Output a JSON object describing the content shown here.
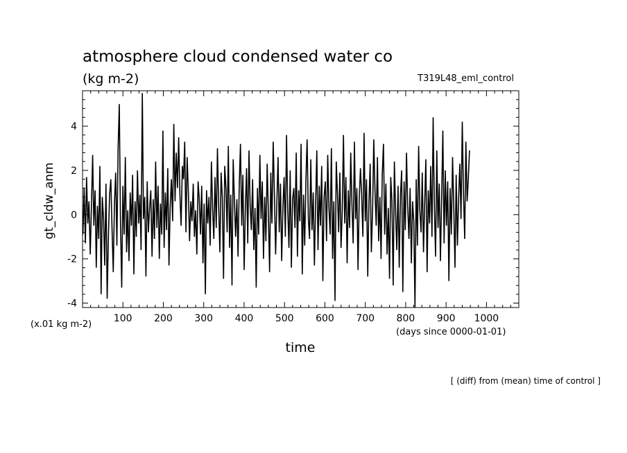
{
  "chart_data": {
    "type": "line",
    "title": "atmosphere cloud condensed water co",
    "units": "(kg m-2)",
    "run_name": "T319L48_eml_control",
    "xlabel": "time",
    "xunits": "(days since 0000-01-01)",
    "ylabel": "gt_cldw_anm",
    "yscale_note": "(x.01 kg m-2)",
    "footnote": "[ (diff) from (mean) time of control ]",
    "xlim": [
      0,
      1080
    ],
    "ylim": [
      -4.2,
      5.6
    ],
    "x_ticks": [
      100,
      200,
      300,
      400,
      500,
      600,
      700,
      800,
      900,
      1000
    ],
    "y_ticks": [
      -4,
      -2,
      0,
      2,
      4
    ],
    "x_start": 1,
    "x_step": 3,
    "series": [
      {
        "values": [
          -0.9,
          1.2,
          -1.3,
          1.7,
          -0.4,
          0.6,
          -1.8,
          0.3,
          2.7,
          -0.5,
          1.1,
          -2.4,
          0.4,
          -1.1,
          2.2,
          -3.6,
          0.8,
          -0.2,
          -2.3,
          1.4,
          -3.8,
          -1.0,
          0.9,
          1.6,
          -0.6,
          -2.6,
          0.5,
          1.9,
          -1.4,
          3.0,
          5.0,
          -0.3,
          -3.3,
          1.3,
          -0.9,
          2.6,
          -1.7,
          0.2,
          -2.1,
          1.0,
          -0.5,
          1.8,
          -2.7,
          0.6,
          -1.0,
          2.0,
          -0.4,
          0.9,
          -1.6,
          5.5,
          -0.2,
          0.8,
          -2.8,
          1.5,
          -0.8,
          0.3,
          1.1,
          -1.9,
          0.7,
          -1.1,
          2.4,
          -0.6,
          1.3,
          -2.0,
          0.5,
          -0.9,
          3.8,
          -1.5,
          1.0,
          -0.7,
          2.1,
          -2.3,
          0.4,
          1.6,
          -0.3,
          4.1,
          0.6,
          2.8,
          1.2,
          3.5,
          0.9,
          -0.5,
          2.2,
          1.6,
          3.3,
          -0.8,
          2.6,
          1.0,
          -1.2,
          0.6,
          -0.3,
          1.4,
          -1.0,
          0.2,
          -1.8,
          1.5,
          0.7,
          -0.9,
          1.3,
          -2.2,
          0.5,
          -3.6,
          1.1,
          -0.4,
          0.8,
          -1.4,
          2.4,
          0.3,
          -1.1,
          1.7,
          -0.6,
          3.0,
          0.4,
          -1.7,
          1.9,
          0.8,
          -2.9,
          2.2,
          1.2,
          -0.8,
          3.1,
          -1.5,
          0.9,
          -3.2,
          2.5,
          0.6,
          -1.0,
          0.7,
          -1.9,
          1.4,
          3.2,
          -0.5,
          1.8,
          -2.5,
          0.2,
          2.1,
          -1.3,
          2.9,
          0.4,
          -0.7,
          1.6,
          -1.6,
          0.3,
          -3.3,
          1.2,
          -0.9,
          2.7,
          -0.2,
          1.5,
          -2.0,
          0.8,
          -1.2,
          2.3,
          0.1,
          -2.6,
          1.9,
          -0.4,
          3.3,
          1.0,
          -1.8,
          0.5,
          2.6,
          -0.8,
          1.4,
          -2.1,
          0.3,
          1.7,
          -1.0,
          3.6,
          0.2,
          -1.5,
          2.0,
          -2.4,
          0.7,
          1.2,
          -0.6,
          2.8,
          -1.9,
          1.1,
          -0.3,
          3.2,
          -2.7,
          0.9,
          -1.4,
          1.6,
          3.4,
          -0.2,
          -1.1,
          2.5,
          -0.7,
          1.0,
          -2.3,
          0.4,
          2.9,
          -1.6,
          1.3,
          -0.5,
          2.2,
          -3.0,
          0.8,
          1.5,
          -1.2,
          2.7,
          0.3,
          -0.9,
          3.0,
          -2.0,
          0.6,
          -3.9,
          2.4,
          1.0,
          -0.8,
          1.9,
          -1.5,
          0.2,
          3.6,
          -0.4,
          1.7,
          -2.2,
          1.1,
          -0.6,
          2.8,
          0.4,
          -1.3,
          3.3,
          -0.2,
          1.2,
          -2.5,
          0.7,
          2.1,
          0.9,
          -1.0,
          3.7,
          -0.3,
          1.6,
          -2.8,
          0.5,
          2.3,
          -1.7,
          0.2,
          3.4,
          1.0,
          -0.5,
          2.6,
          -1.2,
          0.8,
          -2.0,
          1.8,
          3.2,
          -0.9,
          1.4,
          -1.8,
          0.3,
          -2.9,
          1.7,
          0.6,
          -3.2,
          2.4,
          0.1,
          -1.6,
          1.3,
          -2.4,
          0.9,
          2.0,
          -3.5,
          1.5,
          -0.7,
          2.8,
          0.4,
          -1.1,
          1.2,
          -2.2,
          0.6,
          -0.3,
          -4.2,
          1.6,
          -1.4,
          3.1,
          0.2,
          -0.8,
          1.9,
          -1.7,
          0.5,
          2.5,
          -2.6,
          1.1,
          -0.4,
          2.2,
          -1.0,
          4.4,
          0.3,
          -1.9,
          2.9,
          -0.6,
          1.4,
          -2.1,
          0.8,
          3.8,
          -1.3,
          2.0,
          -0.5,
          1.5,
          -3.0,
          1.2,
          -0.9,
          2.6,
          0.4,
          -2.4,
          1.8,
          -1.4,
          0.7,
          2.3,
          -0.2,
          4.2,
          1.0,
          -1.1,
          3.3,
          0.6,
          1.6,
          2.9
        ]
      }
    ]
  }
}
